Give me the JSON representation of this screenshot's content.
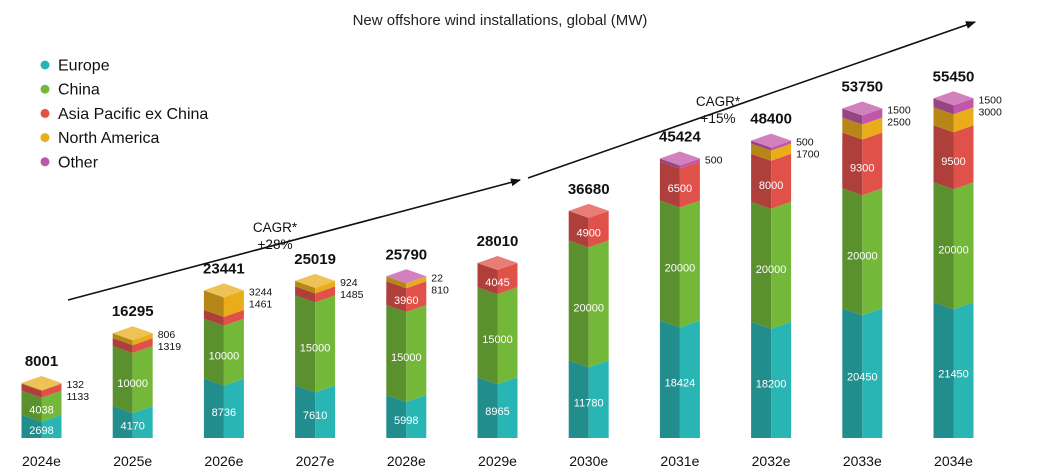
{
  "chart_data": {
    "type": "bar",
    "stacked": true,
    "title": "New offshore wind installations, global (MW)",
    "categories": [
      "2024e",
      "2025e",
      "2026e",
      "2027e",
      "2028e",
      "2029e",
      "2030e",
      "2031e",
      "2032e",
      "2033e",
      "2034e"
    ],
    "totals": [
      8001,
      16295,
      23441,
      25019,
      25790,
      28010,
      36680,
      45424,
      48400,
      53750,
      55450
    ],
    "series": [
      {
        "name": "Europe",
        "color": "#2ab5b5",
        "values": [
          2698,
          4170,
          8736,
          7610,
          5998,
          8965,
          11780,
          18424,
          18200,
          20450,
          21450
        ]
      },
      {
        "name": "China",
        "color": "#74b83a",
        "values": [
          4038,
          10000,
          10000,
          15000,
          15000,
          15000,
          20000,
          20000,
          20000,
          20000,
          20000
        ]
      },
      {
        "name": "Asia Pacific ex China",
        "color": "#e0514a",
        "values": [
          1133,
          1319,
          1461,
          1485,
          3960,
          4045,
          4900,
          6500,
          8000,
          9300,
          9500
        ]
      },
      {
        "name": "North America",
        "color": "#e9ad1c",
        "values": [
          132,
          806,
          3244,
          924,
          810,
          0,
          0,
          0,
          1700,
          2500,
          3000
        ]
      },
      {
        "name": "Other",
        "color": "#c157a8",
        "values": [
          0,
          0,
          0,
          0,
          22,
          0,
          0,
          500,
          500,
          1500,
          1500
        ]
      }
    ],
    "legend_position": "top-left",
    "grid": false,
    "annotations": [
      {
        "text_line1": "CAGR*",
        "text_line2": "+28%",
        "from": "2024e",
        "to": "2029e"
      },
      {
        "text_line1": "CAGR*",
        "text_line2": "+15%",
        "from": "2030e",
        "to": "2034e"
      }
    ]
  }
}
